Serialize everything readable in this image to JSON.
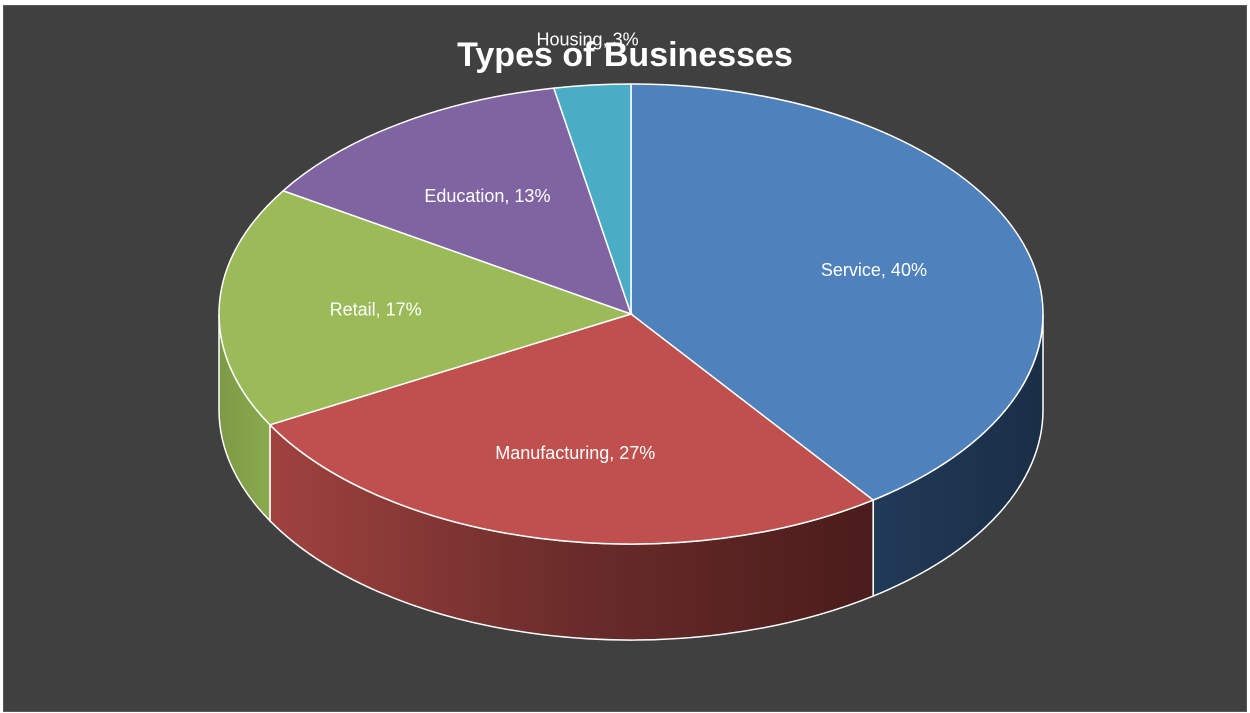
{
  "chart_data": {
    "type": "pie",
    "title": "Types of Businesses",
    "style": "3d",
    "label_format": "category, percent",
    "slices": [
      {
        "category": "Service",
        "value": 40,
        "label": "Service, 40%",
        "color": "#4f81bd",
        "side_color": "#1f3550"
      },
      {
        "category": "Manufacturing",
        "value": 27,
        "label": "Manufacturing, 27%",
        "color": "#c0504d",
        "side_color": "#8a3a38"
      },
      {
        "category": "Retail",
        "value": 17,
        "label": "Retail, 17%",
        "color": "#9bbb59",
        "side_color": "#6f8a3a"
      },
      {
        "category": "Education",
        "value": 13,
        "label": "Education, 13%",
        "color": "#8064a2",
        "side_color": "#553f70"
      },
      {
        "category": "Housing",
        "value": 3,
        "label": "Housing, 3%",
        "color": "#4bacc6",
        "side_color": "#2f7a8c"
      }
    ]
  },
  "colors": {
    "background": "#404040",
    "text": "#ffffff",
    "edge": "#ffffff"
  }
}
